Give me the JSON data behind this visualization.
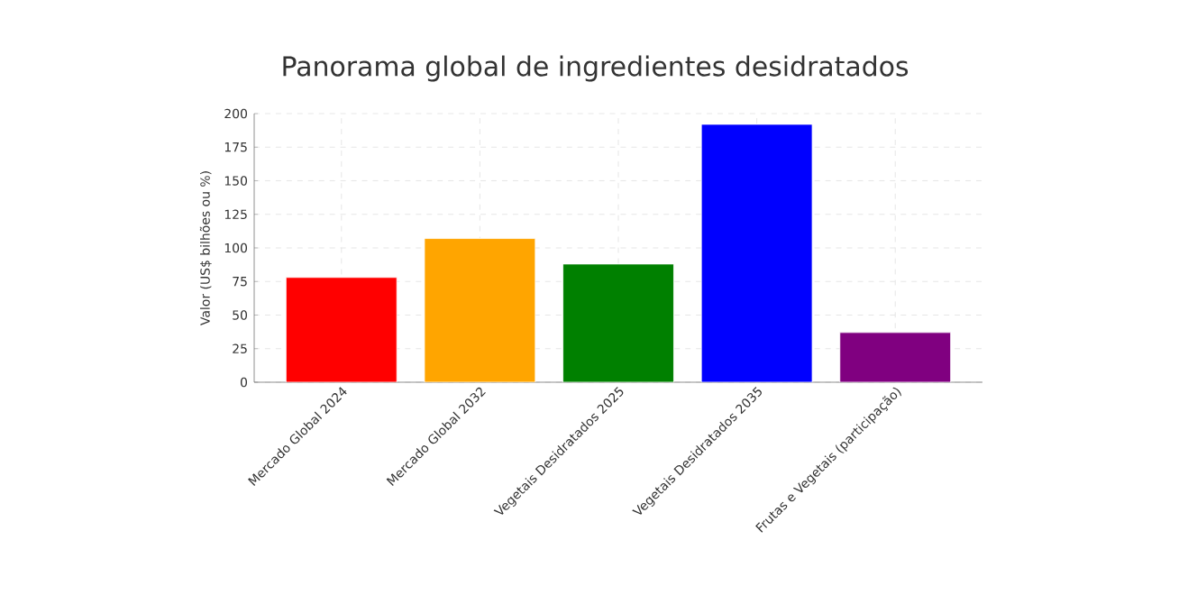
{
  "chart_data": {
    "type": "bar",
    "title": "Panorama global de ingredientes desidratados",
    "ylabel": "Valor (US$ bilhões ou %)",
    "categories": [
      "Mercado Global 2024",
      "Mercado Global 2032",
      "Vegetais Desidratados 2025",
      "Vegetais Desidratados 2035",
      "Frutas e Vegetais (participação)"
    ],
    "values": [
      78,
      107,
      88,
      192,
      37
    ],
    "colors": [
      "#ff0000",
      "#ffa500",
      "#008000",
      "#0000ff",
      "#800080"
    ],
    "ylim": [
      0,
      200
    ],
    "yticks": [
      0,
      25,
      50,
      75,
      100,
      125,
      150,
      175,
      200
    ],
    "grid": true
  }
}
